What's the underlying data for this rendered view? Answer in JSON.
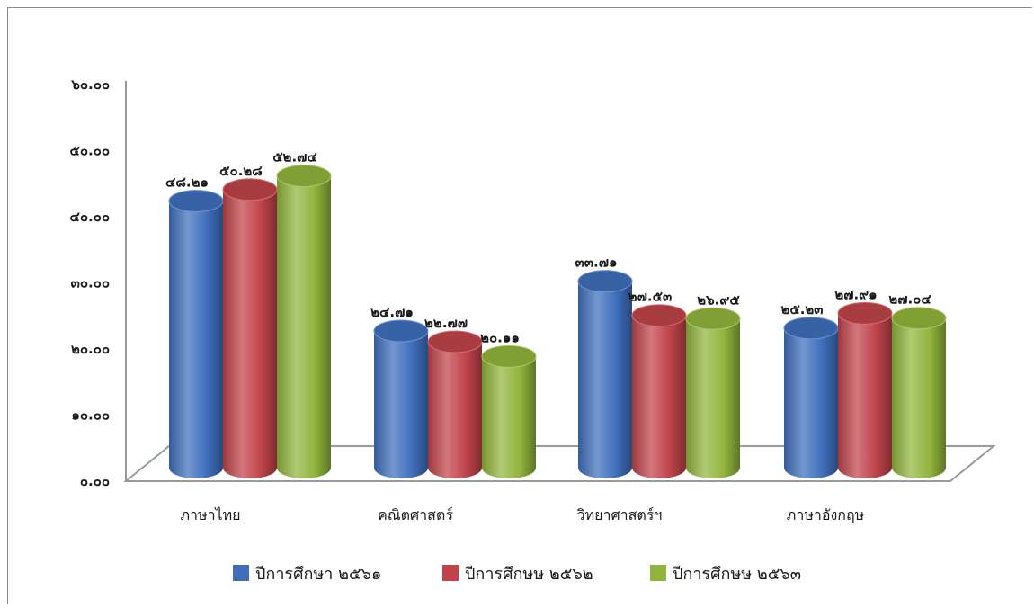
{
  "chart_data": {
    "type": "bar",
    "style": "3d-cylinder",
    "categories": [
      "ภาษาไทย",
      "คณิตศาสตร์",
      "วิทยาศาสตร์ฯ",
      "ภาษาอังกฤษ"
    ],
    "series": [
      {
        "name": "ปีการศึกษา ๒๕๖๑",
        "color": "#3f6fbd",
        "values": [
          48.21,
          24.71,
          33.71,
          25.23
        ],
        "labels": [
          "๔๘.๒๑",
          "๒๔.๗๑",
          "๓๓.๗๑",
          "๒๕.๒๓"
        ]
      },
      {
        "name": "ปีการศึกษษ ๒๕๖๒",
        "color": "#c0444a",
        "values": [
          50.28,
          22.77,
          27.53,
          27.91
        ],
        "labels": [
          "๕๐.๒๘",
          "๒๒.๗๗",
          "๒๗.๕๓",
          "๒๗.๙๑"
        ]
      },
      {
        "name": "ปีการศึกษษ ๒๕๖๓",
        "color": "#91b53c",
        "values": [
          52.74,
          20.11,
          26.95,
          27.04
        ],
        "labels": [
          "๕๒.๗๔",
          "๒๐.๑๑",
          "๒๖.๙๕",
          "๒๗.๐๔"
        ]
      }
    ],
    "yticks": [
      0,
      10,
      20,
      30,
      40,
      50,
      60
    ],
    "ytick_labels": [
      "๐.๐๐",
      "๑๐.๐๐",
      "๒๐.๐๐",
      "๓๐.๐๐",
      "๔๐.๐๐",
      "๕๐.๐๐",
      "๖๐.๐๐"
    ],
    "ylim": [
      0,
      60
    ],
    "grid": false,
    "legend_position": "bottom"
  }
}
